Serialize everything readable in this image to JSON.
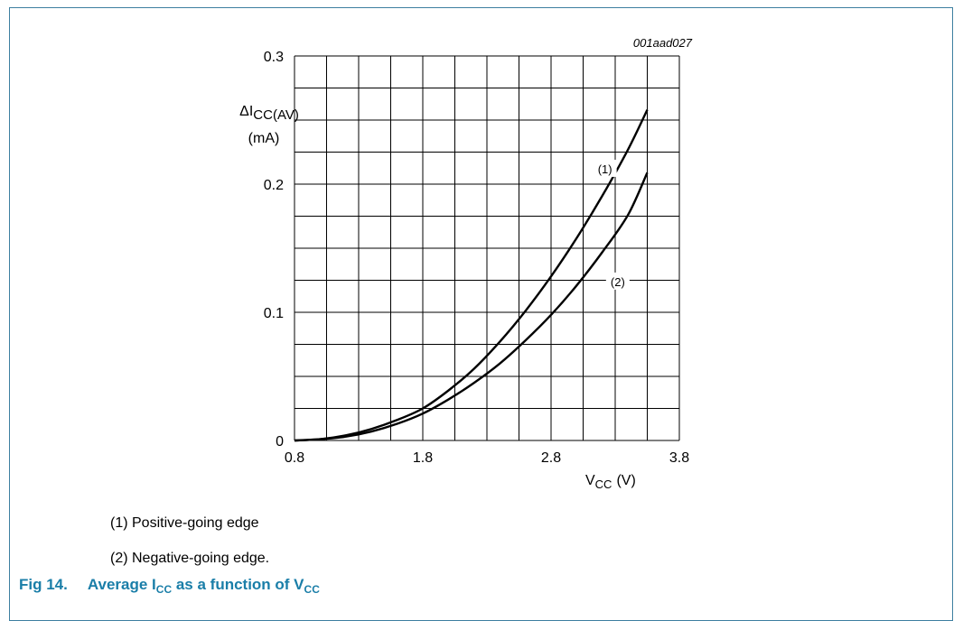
{
  "chart_data": {
    "type": "line",
    "figure_id": "001aad027",
    "ylabel_main": "ΔI",
    "ylabel_sub": "CC(AV)",
    "ylabel_unit": "(mA)",
    "xlabel_main": "V",
    "xlabel_sub": "CC",
    "xlabel_unit": "(V)",
    "xlim": [
      0.8,
      3.8
    ],
    "ylim": [
      0,
      0.3
    ],
    "x_ticks": [
      {
        "value": 0.8,
        "label": "0.8"
      },
      {
        "value": 1.8,
        "label": "1.8"
      },
      {
        "value": 2.8,
        "label": "2.8"
      },
      {
        "value": 3.8,
        "label": "3.8"
      }
    ],
    "y_ticks": [
      {
        "value": 0,
        "label": "0"
      },
      {
        "value": 0.1,
        "label": "0.1"
      },
      {
        "value": 0.2,
        "label": "0.2"
      },
      {
        "value": 0.3,
        "label": "0.3"
      }
    ],
    "grid": true,
    "x_grid_divisions": 12,
    "y_grid_divisions": 12,
    "series": [
      {
        "name": "(1)",
        "label_at": [
          3.22,
          0.212
        ],
        "x": [
          0.8,
          1.0,
          1.2,
          1.4,
          1.6,
          1.8,
          2.0,
          2.2,
          2.4,
          2.6,
          2.8,
          3.0,
          3.2,
          3.4,
          3.55
        ],
        "y": [
          0.0,
          0.001,
          0.004,
          0.009,
          0.016,
          0.025,
          0.039,
          0.056,
          0.077,
          0.101,
          0.128,
          0.158,
          0.191,
          0.227,
          0.258
        ]
      },
      {
        "name": "(2)",
        "label_at": [
          3.32,
          0.124
        ],
        "x": [
          0.8,
          1.0,
          1.2,
          1.4,
          1.6,
          1.8,
          2.0,
          2.2,
          2.4,
          2.6,
          2.8,
          3.0,
          3.2,
          3.4,
          3.55
        ],
        "y": [
          0.0,
          0.001,
          0.003,
          0.007,
          0.013,
          0.021,
          0.032,
          0.045,
          0.06,
          0.078,
          0.098,
          0.121,
          0.147,
          0.176,
          0.209
        ]
      }
    ]
  },
  "legend": [
    {
      "text": "(1) Positive-going edge"
    },
    {
      "text": "(2) Negative-going edge."
    }
  ],
  "caption": {
    "fig_label": "Fig 14.",
    "text_a": "Average I",
    "sub_a": "CC",
    "text_b": " as a function of V",
    "sub_b": "CC"
  }
}
